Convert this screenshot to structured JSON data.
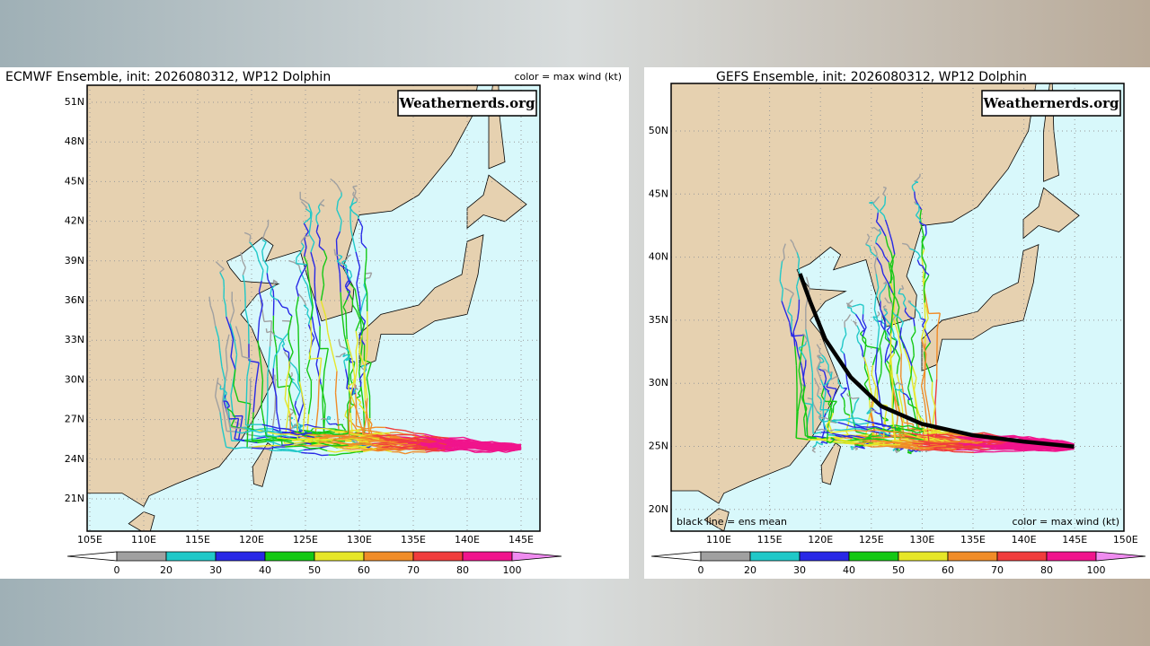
{
  "panels": [
    {
      "title": "ECMWF Ensemble, init: 2026080312, WP12 Dolphin",
      "note": "color = max wind (kt)",
      "watermark": "Weathernerds.org",
      "lat_labels": [
        "51N",
        "48N",
        "45N",
        "42N",
        "39N",
        "36N",
        "33N",
        "30N",
        "27N",
        "24N",
        "21N"
      ],
      "lon_labels": [
        "105E",
        "110E",
        "115E",
        "120E",
        "125E",
        "130E",
        "135E",
        "140E",
        "145E"
      ],
      "colorbar": {
        "labels": [
          "0",
          "20",
          "30",
          "40",
          "50",
          "60",
          "70",
          "80",
          "100"
        ],
        "colors": [
          "#ffffff",
          "#a0a0a0",
          "#20c8c8",
          "#2828e6",
          "#14c814",
          "#e6e628",
          "#f08c28",
          "#f03c3c",
          "#f0148c",
          "#f08cf0"
        ]
      }
    },
    {
      "title": "GEFS Ensemble, init: 2026080312, WP12 Dolphin",
      "note": "color = max wind (kt)",
      "footnote": "black line = ens mean",
      "watermark": "Weathernerds.org",
      "lat_labels": [
        "50N",
        "45N",
        "40N",
        "35N",
        "30N",
        "25N",
        "20N"
      ],
      "lon_labels": [
        "110E",
        "115E",
        "120E",
        "125E",
        "130E",
        "135E",
        "140E",
        "145E",
        "150E"
      ],
      "colorbar": {
        "labels": [
          "0",
          "20",
          "30",
          "40",
          "50",
          "60",
          "70",
          "80",
          "100"
        ],
        "colors": [
          "#ffffff",
          "#a0a0a0",
          "#20c8c8",
          "#2828e6",
          "#14c814",
          "#e6e628",
          "#f08c28",
          "#f03c3c",
          "#f0148c",
          "#f08cf0"
        ]
      }
    }
  ]
}
